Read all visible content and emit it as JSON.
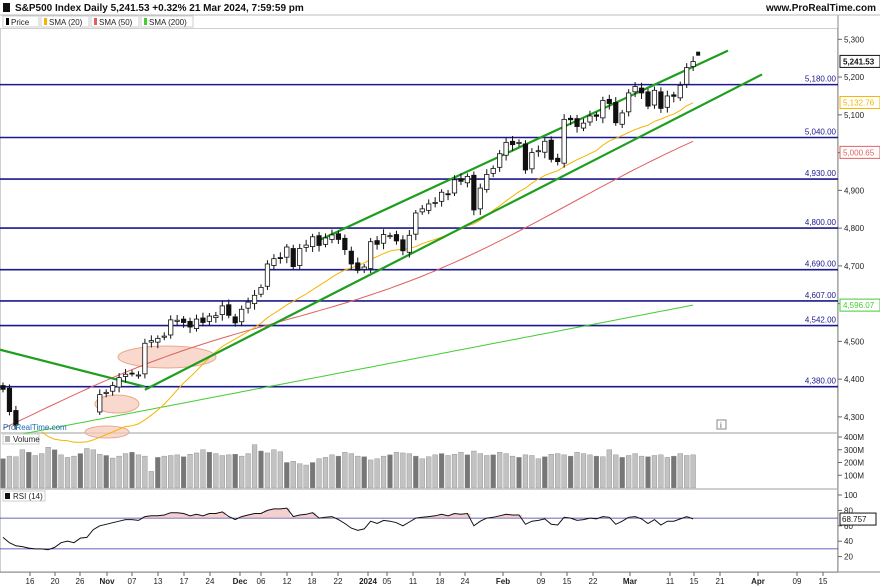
{
  "header": {
    "title": "S&P500 Index Daily 5,241.53 +0.32% 21 Mar 2024, 7:59:59 pm",
    "brand": "www.ProRealTime.com"
  },
  "legend": [
    {
      "label": "Price",
      "color": "#000000"
    },
    {
      "label": "SMA (20)",
      "color": "#f5b400"
    },
    {
      "label": "SMA (50)",
      "color": "#e06060"
    },
    {
      "label": "SMA (200)",
      "color": "#44cc33"
    }
  ],
  "watermark": "ProRealTime.com",
  "volume_label": "Volume",
  "rsi_label": "RSI (14)",
  "info_icon": "info-icon",
  "colors": {
    "hlines": "#1a1a8c",
    "channel": "#1e9e1e",
    "sma20": "#f5b400",
    "sma50": "#e06060",
    "sma200": "#44cc33",
    "volume": "#b5b5b5",
    "highlight": "#f6c9b8"
  },
  "chart_data": [
    {
      "type": "candlestick",
      "title": "S&P500 Index Daily",
      "last_price": 5241.53,
      "price_label": "5,241.53",
      "ylim": [
        4260,
        5330
      ],
      "y_ticks": [
        "5,300",
        "5,200",
        "5,100",
        "5,000",
        "4,900",
        "4,800",
        "4,700",
        "4,600",
        "4,500",
        "4,400",
        "4,300"
      ],
      "x_ticks": [
        "16",
        "20",
        "26",
        "Nov",
        "07",
        "13",
        "17",
        "24",
        "Dec",
        "06",
        "12",
        "18",
        "22",
        "2024",
        "05",
        "11",
        "18",
        "24",
        "Feb",
        "09",
        "15",
        "22",
        "Mar",
        "11",
        "15",
        "21",
        "Apr",
        "09",
        "15"
      ],
      "horizontal_levels": [
        {
          "value": 5180,
          "label": "5,180.00"
        },
        {
          "value": 5040,
          "label": "5,040.00"
        },
        {
          "value": 4930,
          "label": "4,930.00"
        },
        {
          "value": 4800,
          "label": "4,800.00"
        },
        {
          "value": 4690,
          "label": "4,690.00"
        },
        {
          "value": 4607,
          "label": "4,607.00"
        },
        {
          "value": 4542,
          "label": "4,542.00"
        },
        {
          "value": 4380,
          "label": "4,380.00"
        }
      ],
      "sma_labels": [
        {
          "name": "SMA (20)",
          "value": 5132.76,
          "label": "5,132.76"
        },
        {
          "name": "SMA (50)",
          "value": 5000.65,
          "label": "5,000.65"
        },
        {
          "name": "SMA (200)",
          "value": 4596.07,
          "label": "4,596.07"
        }
      ],
      "closes": [
        4373,
        4314,
        4278,
        4258,
        4238,
        4196,
        4194,
        4166,
        4186,
        4217,
        4230,
        4193,
        4238,
        4247,
        4317,
        4359,
        4365,
        4383,
        4404,
        4413,
        4415,
        4411,
        4495,
        4502,
        4508,
        4514,
        4557,
        4556,
        4550,
        4538,
        4559,
        4550,
        4567,
        4568,
        4594,
        4569,
        4549,
        4585,
        4604,
        4622,
        4643,
        4705,
        4719,
        4720,
        4750,
        4698,
        4746,
        4755,
        4777,
        4754,
        4774,
        4782,
        4770,
        4743,
        4705,
        4688,
        4697,
        4764,
        4757,
        4783,
        4780,
        4766,
        4740,
        4781,
        4840,
        4851,
        4864,
        4868,
        4895,
        4890,
        4928,
        4924,
        4937,
        4848,
        4906,
        4942,
        4958,
        4997,
        5027,
        5021,
        5027,
        4954,
        5000,
        5005,
        5030,
        4982,
        4976,
        5088,
        5087,
        5069,
        5078,
        5097,
        5096,
        5138,
        5130,
        5079,
        5105,
        5158,
        5175,
        5158,
        5123,
        5165,
        5117,
        5150,
        5149,
        5178,
        5225,
        5241
      ],
      "sma20_approx": "rises from ~4,300 (early Nov) to 5,132.76",
      "sma50_approx": "rises from ~4,350 (Oct) to 5,000.65",
      "sma200_approx": "rises from ~4,250 (Nov) to 4,596.07",
      "channel": "rising parallel channel from ~4,365 (late Oct) to ~5,260 (Mar)"
    },
    {
      "type": "bar",
      "title": "Volume",
      "y_ticks": [
        "400M",
        "300M",
        "200M",
        "100M"
      ],
      "ylim": [
        0,
        400
      ],
      "values": [
        230,
        250,
        245,
        300,
        280,
        255,
        270,
        320,
        300,
        260,
        240,
        250,
        270,
        310,
        300,
        265,
        255,
        235,
        250,
        270,
        280,
        260,
        250,
        130,
        240,
        250,
        255,
        260,
        245,
        265,
        275,
        300,
        280,
        270,
        255,
        260,
        265,
        250,
        270,
        340,
        290,
        275,
        300,
        285,
        200,
        210,
        190,
        180,
        200,
        230,
        240,
        260,
        250,
        280,
        270,
        250,
        245,
        220,
        230,
        250,
        260,
        280,
        275,
        270,
        250,
        230,
        245,
        260,
        270,
        255,
        265,
        280,
        260,
        290,
        270,
        255,
        260,
        280,
        270,
        250,
        240,
        260,
        255,
        230,
        245,
        265,
        270,
        260,
        250,
        280,
        270,
        260,
        250,
        245,
        300,
        260,
        240,
        255,
        270,
        250,
        245,
        255,
        260,
        240,
        250,
        270,
        255,
        260
      ]
    },
    {
      "type": "line",
      "title": "RSI (14)",
      "last_value": 68.757,
      "value_label": "68.757",
      "y_ticks": [
        "100",
        "80",
        "60",
        "40",
        "20"
      ],
      "ylim": [
        0,
        100
      ],
      "reference_levels": [
        70,
        30
      ],
      "values": [
        45,
        38,
        34,
        33,
        31,
        30,
        30,
        29,
        32,
        38,
        40,
        38,
        44,
        45,
        55,
        60,
        62,
        64,
        66,
        68,
        68,
        67,
        72,
        73,
        73,
        74,
        77,
        77,
        76,
        73,
        75,
        73,
        76,
        76,
        78,
        72,
        68,
        72,
        74,
        76,
        76,
        80,
        82,
        82,
        83,
        72,
        74,
        75,
        77,
        70,
        71,
        72,
        68,
        63,
        57,
        54,
        56,
        66,
        63,
        67,
        66,
        64,
        60,
        65,
        70,
        71,
        72,
        73,
        75,
        73,
        76,
        75,
        76,
        60,
        66,
        70,
        71,
        73,
        75,
        74,
        74,
        62,
        66,
        67,
        69,
        62,
        61,
        71,
        70,
        67,
        68,
        70,
        69,
        72,
        71,
        62,
        66,
        71,
        72,
        69,
        63,
        68,
        61,
        66,
        66,
        69,
        72,
        69
      ]
    }
  ]
}
